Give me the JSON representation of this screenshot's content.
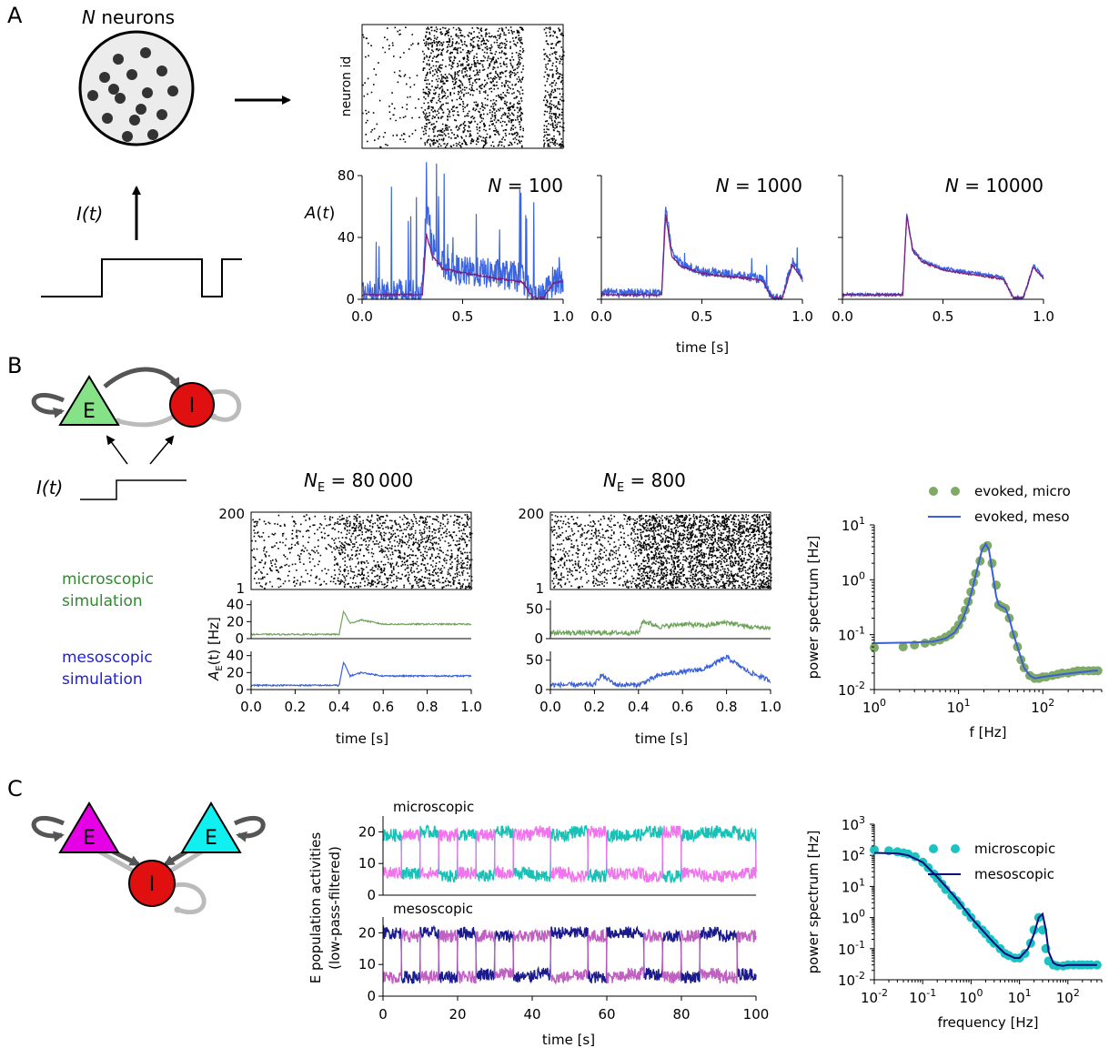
{
  "panels": {
    "A": {
      "letter": "A",
      "schematic": {
        "title_italic": "N",
        "title_rest": " neurons",
        "input_label": "I(t)"
      },
      "raster": {
        "ylabel": "neuron id"
      },
      "trace_ylabel": "A(t)",
      "xlabel": "time [s]"
    },
    "B": {
      "letter": "B",
      "schematic": {
        "e_label": "E",
        "i_label": "I",
        "input_label": "I(t)"
      },
      "legend_micro": [
        "microscopic",
        "simulation"
      ],
      "legend_meso": [
        "mesoscopic",
        "simulation"
      ],
      "colors": {
        "micro": "#2e8b2e",
        "meso": "#1f1fd6"
      },
      "col_titles": [
        {
          "prefix": "N",
          "sub": "E",
          "rest": " = 80 000"
        },
        {
          "prefix": "N",
          "sub": "E",
          "rest": " = 800"
        }
      ],
      "act_ylabel_main": "A",
      "act_ylabel_sub": "E",
      "act_ylabel_rest": "(t) [Hz]",
      "xlabel": "time [s]"
    },
    "C": {
      "letter": "C",
      "schematic": {
        "e1_label": "E",
        "e2_label": "E",
        "i_label": "I"
      },
      "ylabel_line1": "E population activities",
      "ylabel_line2": "(low-pass-filtered)",
      "sub_micro": "microscopic",
      "sub_meso": "mesoscopic",
      "xlabel": "time [s]"
    }
  },
  "chart_data": [
    {
      "id": "A-raster",
      "type": "scatter",
      "xlim": [
        0,
        1.0
      ],
      "ylabel": "neuron id",
      "description_values": {
        "onset_s": 0.3,
        "offset_s": 0.8,
        "step_up_s": 0.95
      }
    },
    {
      "id": "A-N100",
      "type": "line",
      "title": "N = 100",
      "xlim": [
        0,
        1.0
      ],
      "ylim": [
        0,
        80
      ],
      "xticks": [
        0.0,
        0.5,
        1.0
      ],
      "yticks": [
        0,
        40,
        80
      ],
      "series": [
        {
          "color": "#3a64e0",
          "x": [
            0.0,
            0.1,
            0.2,
            0.3,
            0.32,
            0.35,
            0.4,
            0.5,
            0.6,
            0.7,
            0.8,
            0.85,
            0.9,
            0.95,
            1.0
          ],
          "values": [
            4,
            4,
            4,
            4,
            60,
            35,
            22,
            18,
            17,
            16,
            14,
            1,
            1,
            12,
            14
          ]
        },
        {
          "color": "#7b1f7b",
          "x": [
            0.0,
            0.1,
            0.2,
            0.3,
            0.32,
            0.35,
            0.4,
            0.5,
            0.6,
            0.7,
            0.8,
            0.85,
            0.9,
            0.95,
            1.0
          ],
          "values": [
            3,
            3,
            3,
            3,
            42,
            28,
            20,
            17,
            15,
            13,
            11,
            1,
            1,
            10,
            12
          ]
        }
      ]
    },
    {
      "id": "A-N1000",
      "type": "line",
      "title": "N = 1000",
      "xlim": [
        0,
        1.0
      ],
      "ylim": [
        0,
        80
      ],
      "xticks": [
        0.0,
        0.5,
        1.0
      ],
      "series": [
        {
          "color": "#3a64e0",
          "x": [
            0.0,
            0.1,
            0.2,
            0.3,
            0.32,
            0.35,
            0.4,
            0.5,
            0.6,
            0.7,
            0.8,
            0.85,
            0.9,
            0.95,
            1.0
          ],
          "values": [
            4,
            4,
            4,
            4,
            62,
            30,
            22,
            18,
            17,
            15,
            13,
            1,
            1,
            25,
            14
          ]
        },
        {
          "color": "#7b1f7b",
          "x": [
            0.0,
            0.1,
            0.2,
            0.3,
            0.32,
            0.35,
            0.4,
            0.5,
            0.6,
            0.7,
            0.8,
            0.85,
            0.9,
            0.95,
            1.0
          ],
          "values": [
            3,
            3,
            3,
            3,
            55,
            28,
            21,
            17,
            15,
            14,
            12,
            1,
            1,
            22,
            13
          ]
        }
      ]
    },
    {
      "id": "A-N10000",
      "type": "line",
      "title": "N = 10000",
      "xlim": [
        0,
        1.0
      ],
      "ylim": [
        0,
        80
      ],
      "xticks": [
        0.0,
        0.5,
        1.0
      ],
      "series": [
        {
          "color": "#3a64e0",
          "x": [
            0.0,
            0.1,
            0.2,
            0.3,
            0.32,
            0.35,
            0.4,
            0.5,
            0.6,
            0.7,
            0.8,
            0.85,
            0.9,
            0.95,
            1.0
          ],
          "values": [
            3,
            3,
            3,
            3,
            55,
            32,
            25,
            20,
            18,
            16,
            14,
            1,
            1,
            22,
            14
          ]
        },
        {
          "color": "#7b1f7b",
          "x": [
            0.0,
            0.1,
            0.2,
            0.3,
            0.32,
            0.35,
            0.4,
            0.5,
            0.6,
            0.7,
            0.8,
            0.85,
            0.9,
            0.95,
            1.0
          ],
          "values": [
            3,
            3,
            3,
            3,
            54,
            31,
            24,
            19,
            17,
            15,
            13,
            1,
            1,
            21,
            13
          ]
        }
      ]
    },
    {
      "id": "B-raster-80000",
      "type": "scatter",
      "xlim": [
        0,
        1.0
      ],
      "ylim": [
        1,
        200
      ],
      "yticks": [
        1,
        200
      ]
    },
    {
      "id": "B-raster-800",
      "type": "scatter",
      "xlim": [
        0,
        1.0
      ],
      "ylim": [
        1,
        200
      ],
      "yticks": [
        1,
        200
      ]
    },
    {
      "id": "B-act-80000",
      "type": "line",
      "xlim": [
        0,
        1.0
      ],
      "xticks": [
        0.0,
        0.2,
        0.4,
        0.6,
        0.8,
        1.0
      ],
      "yticks": [
        0,
        20,
        40
      ],
      "ylim": [
        0,
        45
      ],
      "series": [
        {
          "name": "micro",
          "color": "#6fa35a",
          "x": [
            0.0,
            0.4,
            0.42,
            0.45,
            0.5,
            0.6,
            0.8,
            1.0
          ],
          "values": [
            5,
            5,
            32,
            18,
            22,
            17,
            17,
            17
          ]
        },
        {
          "name": "meso",
          "color": "#3a5fd6",
          "x": [
            0.0,
            0.4,
            0.42,
            0.45,
            0.5,
            0.6,
            0.8,
            1.0
          ],
          "values": [
            5,
            5,
            32,
            16,
            20,
            16,
            16,
            16
          ]
        }
      ]
    },
    {
      "id": "B-act-800",
      "type": "line",
      "xlim": [
        0,
        1.0
      ],
      "xticks": [
        0.0,
        0.2,
        0.4,
        0.6,
        0.8,
        1.0
      ],
      "yticks": [
        0,
        50
      ],
      "ylim": [
        0,
        65
      ],
      "series": [
        {
          "name": "micro",
          "color": "#6fa35a",
          "x": [
            0.0,
            0.4,
            0.42,
            0.5,
            0.6,
            0.7,
            0.8,
            0.9,
            1.0
          ],
          "values": [
            10,
            10,
            30,
            20,
            25,
            22,
            28,
            20,
            18
          ]
        },
        {
          "name": "meso",
          "color": "#3a5fd6",
          "x": [
            0.0,
            0.2,
            0.23,
            0.3,
            0.4,
            0.5,
            0.6,
            0.7,
            0.8,
            0.9,
            1.0
          ],
          "values": [
            8,
            8,
            25,
            8,
            8,
            25,
            30,
            35,
            55,
            30,
            15
          ]
        }
      ]
    },
    {
      "id": "B-spectrum",
      "type": "scatter",
      "xlabel": "f [Hz]",
      "ylabel": "power spectrum [Hz]",
      "xscale": "log",
      "yscale": "log",
      "xlim": [
        1,
        500
      ],
      "ylim": [
        0.01,
        10
      ],
      "xtick_labels": [
        "10^0",
        "10^1",
        "10^2"
      ],
      "ytick_labels": [
        "10^-2",
        "10^-1",
        "10^0",
        "10^1"
      ],
      "legend": "top-right",
      "series": [
        {
          "name": "evoked, micro",
          "color": "#7faa66",
          "x": [
            1,
            2.2,
            3,
            4,
            5,
            6,
            7,
            8,
            9,
            10,
            11,
            12,
            13,
            14,
            15,
            16,
            18,
            20,
            22,
            25,
            28,
            30,
            33,
            36,
            40,
            45,
            50,
            55,
            60,
            70,
            80,
            90,
            100,
            110,
            130,
            150,
            170,
            200,
            230,
            260,
            300,
            350,
            400,
            450
          ],
          "values": [
            0.058,
            0.06,
            0.065,
            0.07,
            0.075,
            0.08,
            0.09,
            0.1,
            0.12,
            0.15,
            0.2,
            0.28,
            0.4,
            0.6,
            0.9,
            1.3,
            2.2,
            3.8,
            4.2,
            2.0,
            0.8,
            0.35,
            0.32,
            0.3,
            0.2,
            0.1,
            0.06,
            0.035,
            0.025,
            0.018,
            0.016,
            0.016,
            0.017,
            0.017,
            0.018,
            0.019,
            0.02,
            0.02,
            0.021,
            0.022,
            0.022,
            0.022,
            0.022,
            0.022
          ]
        },
        {
          "name": "evoked, meso",
          "color": "#3a5fd6",
          "x": [
            1,
            3,
            5,
            7,
            9,
            11,
            13,
            15,
            17,
            19,
            21,
            23,
            25,
            28,
            30,
            33,
            36,
            40,
            45,
            50,
            60,
            70,
            80,
            100,
            130,
            170,
            230,
            300,
            400,
            450
          ],
          "values": [
            0.07,
            0.072,
            0.075,
            0.085,
            0.11,
            0.18,
            0.35,
            0.8,
            1.8,
            3.5,
            4.5,
            3.5,
            1.5,
            0.5,
            0.35,
            0.32,
            0.3,
            0.2,
            0.1,
            0.06,
            0.025,
            0.018,
            0.016,
            0.017,
            0.018,
            0.019,
            0.02,
            0.021,
            0.022,
            0.022
          ]
        }
      ]
    },
    {
      "id": "C-micro",
      "type": "line",
      "xlim": [
        0,
        100
      ],
      "ylim": [
        0,
        25
      ],
      "yticks": [
        0,
        10,
        20
      ],
      "series": [
        {
          "color": "#17c1b5",
          "x": [
            0,
            5,
            10,
            15,
            20,
            25,
            30,
            35,
            40,
            45,
            50,
            55,
            60,
            65,
            70,
            75,
            80,
            85,
            90,
            95,
            100
          ],
          "values": [
            19,
            7,
            20,
            6,
            19,
            6,
            20,
            7,
            6,
            19,
            20,
            6,
            19,
            19,
            20,
            6,
            19,
            20,
            20,
            19,
            7
          ]
        },
        {
          "color": "#f074ee",
          "x": [
            0,
            5,
            10,
            15,
            20,
            25,
            30,
            35,
            40,
            45,
            50,
            55,
            60,
            65,
            70,
            75,
            80,
            85,
            90,
            95,
            100
          ],
          "values": [
            7,
            19,
            7,
            19,
            7,
            19,
            7,
            19,
            20,
            7,
            6,
            20,
            7,
            7,
            6,
            20,
            7,
            6,
            6,
            7,
            19
          ]
        }
      ]
    },
    {
      "id": "C-meso",
      "type": "line",
      "xlim": [
        0,
        100
      ],
      "xticks": [
        0,
        20,
        40,
        60,
        80,
        100
      ],
      "ylim": [
        0,
        25
      ],
      "yticks": [
        0,
        10,
        20
      ],
      "series": [
        {
          "color": "#1a1a8e",
          "x": [
            0,
            5,
            10,
            15,
            20,
            25,
            30,
            35,
            40,
            45,
            50,
            55,
            60,
            65,
            70,
            75,
            80,
            85,
            90,
            95,
            100
          ],
          "values": [
            20,
            6,
            20,
            6,
            20,
            7,
            19,
            6,
            7,
            20,
            20,
            6,
            20,
            20,
            7,
            19,
            6,
            20,
            19,
            7,
            7
          ]
        },
        {
          "color": "#c060c0",
          "x": [
            0,
            5,
            10,
            15,
            20,
            25,
            30,
            35,
            40,
            45,
            50,
            55,
            60,
            65,
            70,
            75,
            80,
            85,
            90,
            95,
            100
          ],
          "values": [
            6,
            19,
            6,
            19,
            6,
            19,
            7,
            19,
            19,
            6,
            7,
            19,
            6,
            7,
            19,
            6,
            19,
            7,
            6,
            19,
            19
          ]
        }
      ]
    },
    {
      "id": "C-spectrum",
      "type": "scatter",
      "xlabel": "frequency [Hz]",
      "ylabel": "power spectrum [Hz]",
      "xscale": "log",
      "yscale": "log",
      "xlim": [
        0.01,
        500
      ],
      "ylim": [
        0.01,
        1000
      ],
      "xtick_labels": [
        "10^-2",
        "10^-1",
        "10^0",
        "10^1",
        "10^2"
      ],
      "ytick_labels": [
        "10^-2",
        "10^-1",
        "10^0",
        "10^1",
        "10^2",
        "10^3"
      ],
      "legend": "top-right",
      "series": [
        {
          "name": "microscopic",
          "color": "#1fc2c2",
          "x": [
            0.01,
            0.02,
            0.03,
            0.04,
            0.05,
            0.07,
            0.1,
            0.13,
            0.17,
            0.2,
            0.25,
            0.3,
            0.4,
            0.5,
            0.6,
            0.8,
            1,
            1.3,
            1.7,
            2,
            2.5,
            3,
            4,
            5,
            6,
            8,
            10,
            13,
            17,
            20,
            25,
            30,
            35,
            40,
            50,
            60,
            80,
            100,
            130,
            170,
            200,
            250,
            300,
            400
          ],
          "values": [
            150,
            140,
            130,
            120,
            110,
            90,
            60,
            40,
            25,
            18,
            12,
            8,
            5,
            3.5,
            2.5,
            1.5,
            1,
            0.6,
            0.4,
            0.3,
            0.2,
            0.15,
            0.1,
            0.07,
            0.06,
            0.05,
            0.05,
            0.07,
            0.15,
            0.4,
            1.0,
            0.4,
            0.1,
            0.04,
            0.03,
            0.028,
            0.028,
            0.03,
            0.03,
            0.03,
            0.03,
            0.03,
            0.03,
            0.03
          ]
        },
        {
          "name": "mesoscopic",
          "color": "#0a0a7a",
          "x": [
            0.01,
            0.03,
            0.05,
            0.1,
            0.2,
            0.3,
            0.5,
            1,
            2,
            3,
            5,
            8,
            10,
            15,
            20,
            25,
            30,
            35,
            40,
            50,
            60,
            80,
            100,
            200,
            300,
            400
          ],
          "values": [
            120,
            115,
            100,
            60,
            20,
            10,
            4,
            1,
            0.3,
            0.15,
            0.07,
            0.05,
            0.05,
            0.1,
            0.3,
            1.0,
            1.3,
            0.4,
            0.08,
            0.035,
            0.03,
            0.028,
            0.03,
            0.03,
            0.03,
            0.03
          ]
        }
      ]
    }
  ]
}
